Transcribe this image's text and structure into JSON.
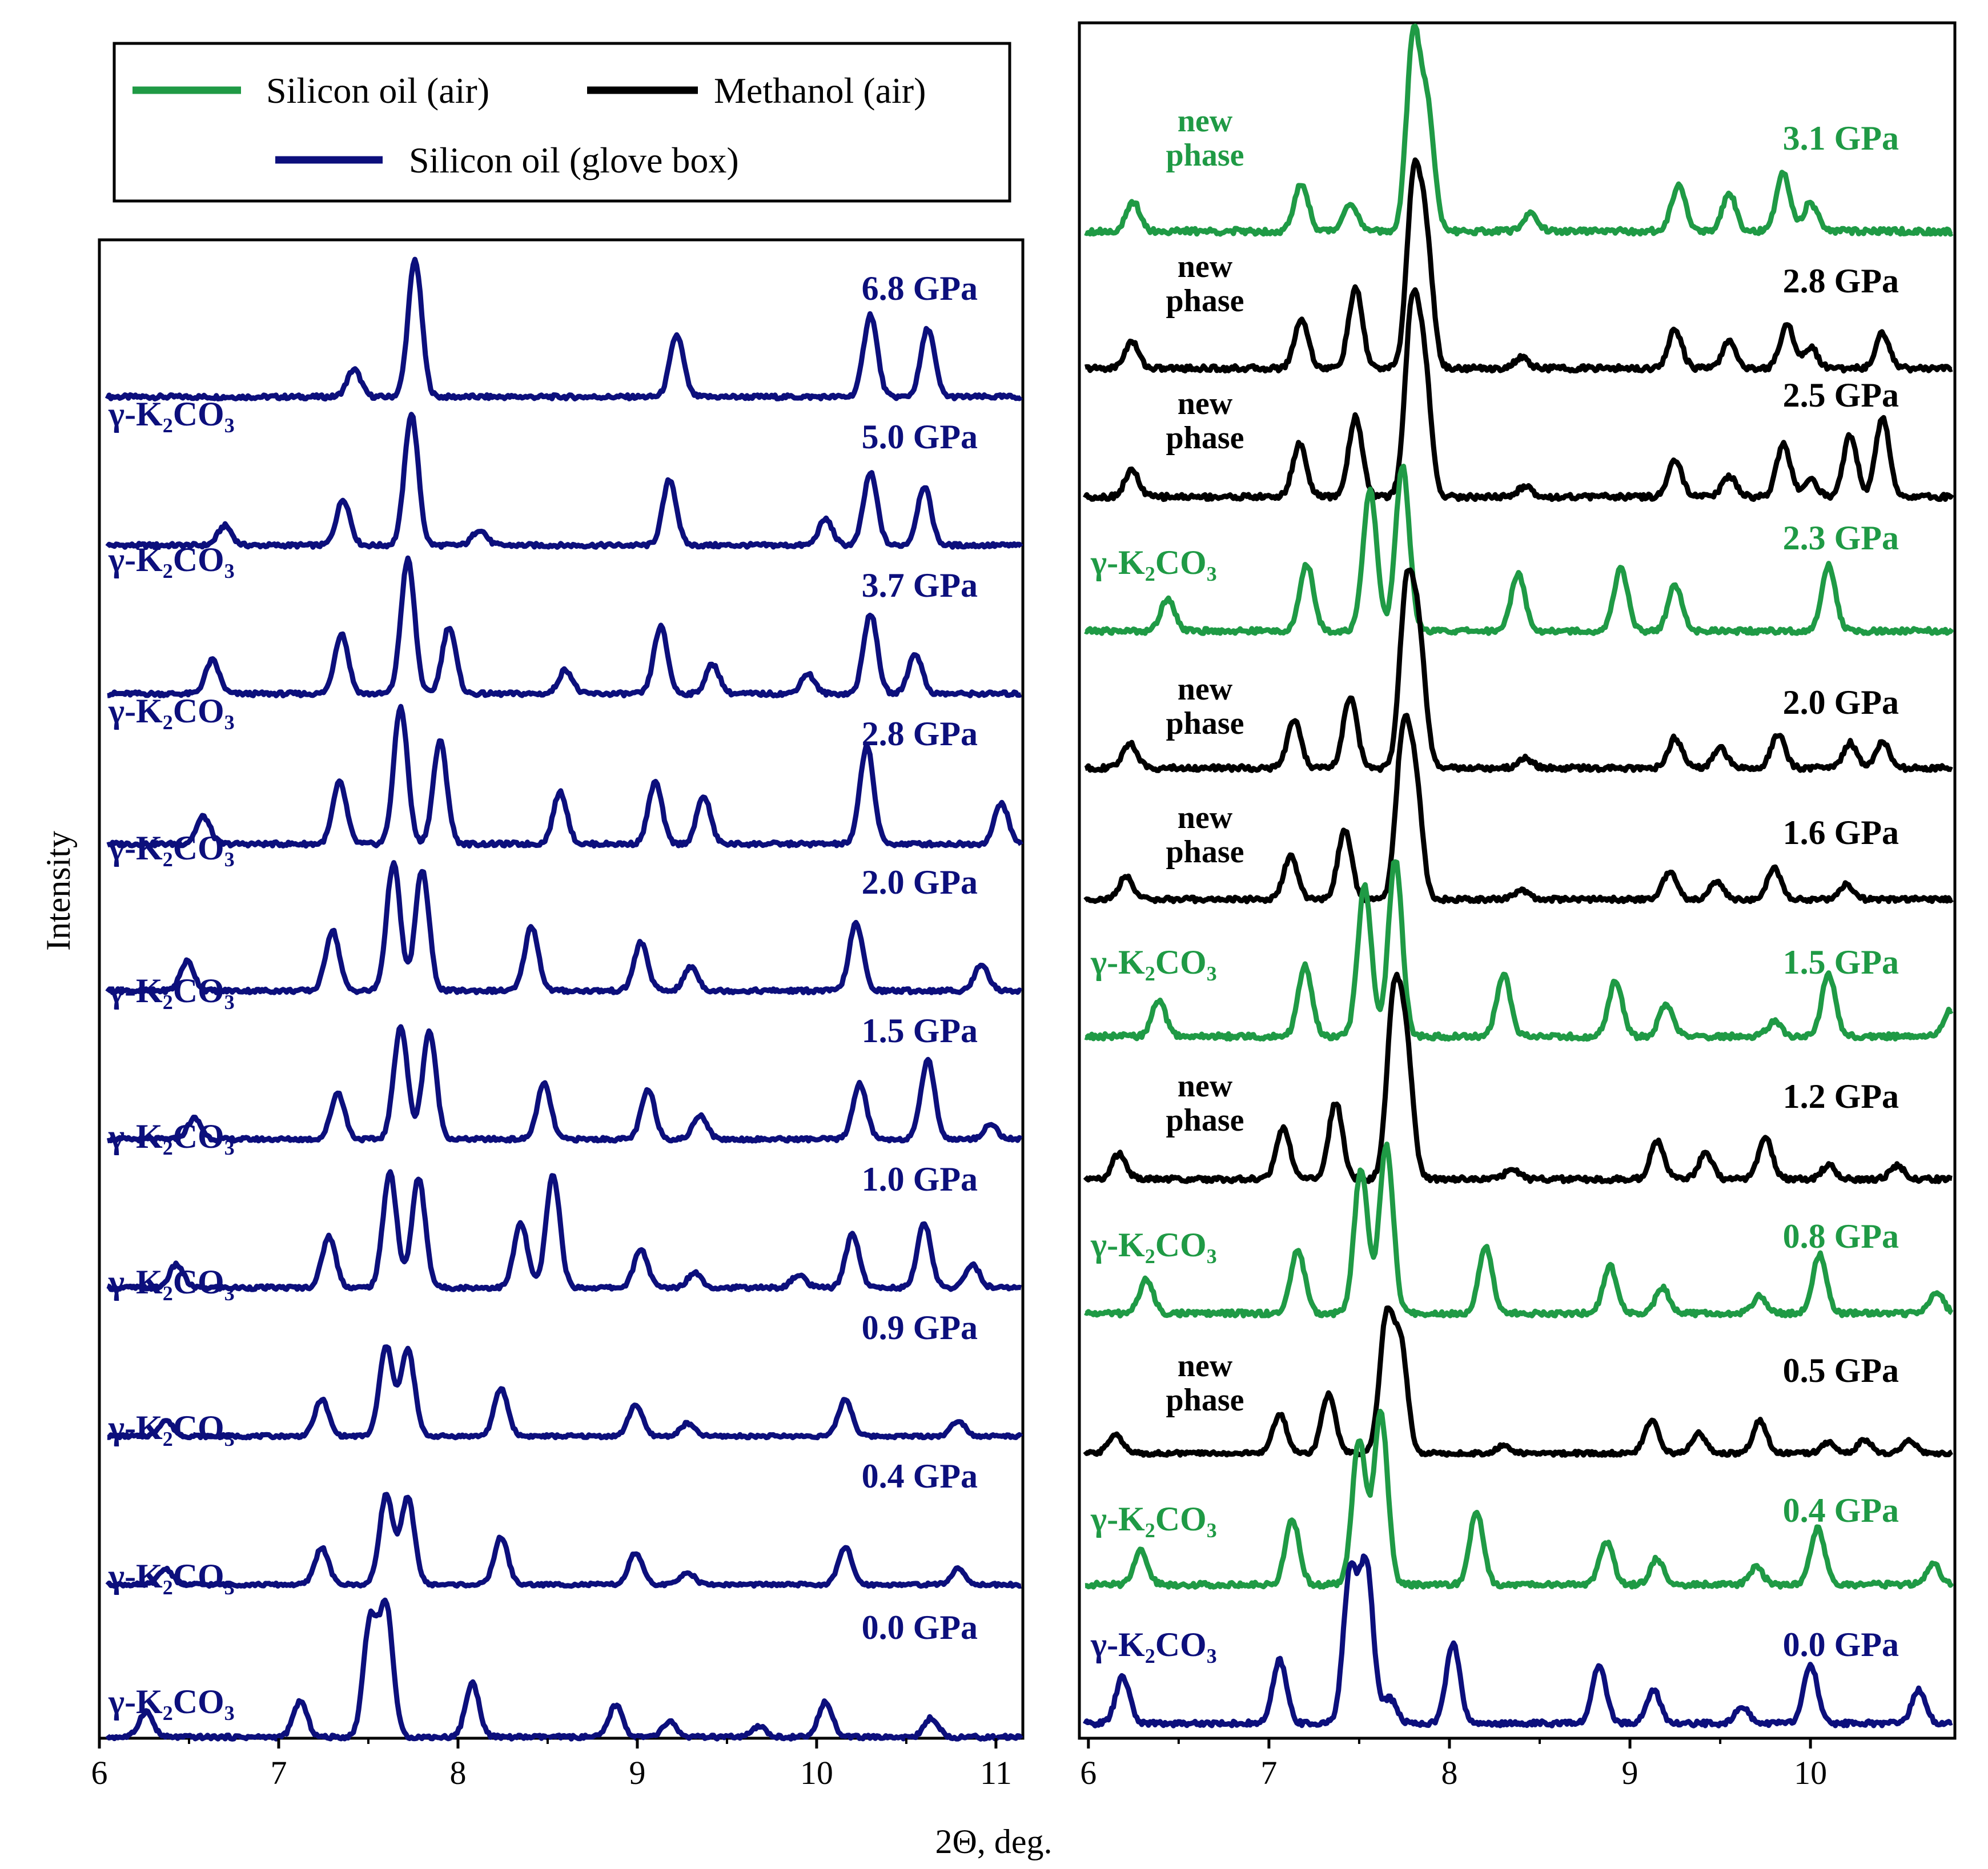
{
  "colors": {
    "green": "#1f9a45",
    "black": "#000000",
    "navy": "#0c0f7c"
  },
  "legend": {
    "items": [
      {
        "label": "Silicon oil (air)",
        "color": "#1f9a45"
      },
      {
        "label": "Methanol (air)",
        "color": "#000000"
      },
      {
        "label": "Silicon oil (glove box)",
        "color": "#0c0f7c"
      }
    ]
  },
  "axes": {
    "ylabel": "Intensity",
    "xlabel": "2Θ, deg."
  },
  "chart_data": [
    {
      "type": "line",
      "panel": "left",
      "xlabel": "2Θ, deg.",
      "ylabel": "Intensity",
      "xlim": [
        6,
        11.15
      ],
      "xticks": [
        6,
        7,
        8,
        9,
        10,
        11
      ],
      "grid": false,
      "series": [
        {
          "pressure": "6.8 GPa",
          "phase_label": "γ-K₂CO₃",
          "medium": "Silicon oil (glove box)",
          "peaks": [
            [
              7.42,
              0.2
            ],
            [
              7.76,
              1.0
            ],
            [
              9.22,
              0.45
            ],
            [
              10.3,
              0.6
            ],
            [
              10.62,
              0.5
            ]
          ]
        },
        {
          "pressure": "5.0 GPa",
          "phase_label": "γ-K₂CO₃",
          "medium": "Silicon oil (glove box)",
          "peaks": [
            [
              6.7,
              0.15
            ],
            [
              7.36,
              0.35
            ],
            [
              7.74,
              1.0
            ],
            [
              8.12,
              0.12
            ],
            [
              9.18,
              0.5
            ],
            [
              10.05,
              0.2
            ],
            [
              10.3,
              0.55
            ],
            [
              10.6,
              0.45
            ]
          ]
        },
        {
          "pressure": "3.7 GPa",
          "phase_label": "γ-K₂CO₃",
          "medium": "Silicon oil (glove box)",
          "peaks": [
            [
              6.63,
              0.25
            ],
            [
              7.35,
              0.45
            ],
            [
              7.72,
              1.0
            ],
            [
              7.95,
              0.5
            ],
            [
              8.6,
              0.18
            ],
            [
              9.13,
              0.5
            ],
            [
              9.42,
              0.22
            ],
            [
              9.95,
              0.15
            ],
            [
              10.3,
              0.6
            ],
            [
              10.55,
              0.3
            ]
          ]
        },
        {
          "pressure": "2.8 GPa",
          "phase_label": "γ-K₂CO₃",
          "medium": "Silicon oil (glove box)",
          "peaks": [
            [
              6.58,
              0.2
            ],
            [
              7.34,
              0.45
            ],
            [
              7.68,
              1.0
            ],
            [
              7.9,
              0.75
            ],
            [
              8.57,
              0.38
            ],
            [
              9.1,
              0.45
            ],
            [
              9.37,
              0.35
            ],
            [
              10.28,
              0.72
            ],
            [
              11.03,
              0.3
            ]
          ]
        },
        {
          "pressure": "2.0 GPa",
          "phase_label": "γ-K₂CO₃",
          "medium": "Silicon oil (glove box)",
          "peaks": [
            [
              6.49,
              0.22
            ],
            [
              7.3,
              0.45
            ],
            [
              7.64,
              0.95
            ],
            [
              7.8,
              0.9
            ],
            [
              8.41,
              0.48
            ],
            [
              9.02,
              0.36
            ],
            [
              9.3,
              0.18
            ],
            [
              10.22,
              0.5
            ],
            [
              10.92,
              0.2
            ]
          ]
        },
        {
          "pressure": "1.5 GPa",
          "phase_label": "γ-K₂CO₃",
          "medium": "Silicon oil (glove box)",
          "peaks": [
            [
              6.53,
              0.17
            ],
            [
              7.33,
              0.38
            ],
            [
              7.68,
              0.92
            ],
            [
              7.84,
              0.88
            ],
            [
              8.48,
              0.45
            ],
            [
              9.06,
              0.4
            ],
            [
              9.35,
              0.2
            ],
            [
              10.24,
              0.45
            ],
            [
              10.62,
              0.65
            ],
            [
              10.97,
              0.12
            ]
          ]
        },
        {
          "pressure": "1.0 GPa",
          "phase_label": "γ-K₂CO₃",
          "medium": "Silicon oil (glove box)",
          "peaks": [
            [
              6.43,
              0.18
            ],
            [
              7.28,
              0.4
            ],
            [
              7.62,
              0.9
            ],
            [
              7.78,
              0.85
            ],
            [
              8.35,
              0.5
            ],
            [
              8.53,
              0.88
            ],
            [
              9.02,
              0.3
            ],
            [
              9.32,
              0.12
            ],
            [
              9.9,
              0.1
            ],
            [
              10.2,
              0.42
            ],
            [
              10.6,
              0.5
            ],
            [
              10.87,
              0.18
            ]
          ]
        },
        {
          "pressure": "0.9 GPa",
          "phase_label": "γ-K₂CO₃",
          "medium": "Silicon oil (glove box)",
          "peaks": [
            [
              6.37,
              0.15
            ],
            [
              7.24,
              0.35
            ],
            [
              7.6,
              0.85
            ],
            [
              7.72,
              0.82
            ],
            [
              8.24,
              0.45
            ],
            [
              8.99,
              0.3
            ],
            [
              9.28,
              0.12
            ],
            [
              10.16,
              0.35
            ],
            [
              10.79,
              0.15
            ]
          ]
        },
        {
          "pressure": "0.4 GPa",
          "phase_label": "γ-K₂CO₃",
          "medium": "Silicon oil (glove box)",
          "peaks": [
            [
              6.37,
              0.15
            ],
            [
              7.24,
              0.35
            ],
            [
              7.6,
              0.85
            ],
            [
              7.72,
              0.82
            ],
            [
              8.24,
              0.45
            ],
            [
              8.99,
              0.3
            ],
            [
              9.28,
              0.12
            ],
            [
              10.16,
              0.35
            ],
            [
              10.79,
              0.15
            ]
          ]
        },
        {
          "pressure": "0.0 GPa",
          "phase_label": "γ-K₂CO₃",
          "medium": "Silicon oil (glove box)",
          "peaks": [
            [
              6.26,
              0.2
            ],
            [
              7.12,
              0.28
            ],
            [
              7.51,
              0.9
            ],
            [
              7.6,
              1.0
            ],
            [
              8.08,
              0.42
            ],
            [
              8.88,
              0.25
            ],
            [
              9.18,
              0.12
            ],
            [
              9.68,
              0.08
            ],
            [
              10.05,
              0.28
            ],
            [
              10.64,
              0.15
            ]
          ]
        }
      ]
    },
    {
      "type": "line",
      "panel": "right",
      "xlabel": "2Θ, deg.",
      "ylabel": "Intensity",
      "xlim": [
        5.95,
        10.8
      ],
      "xticks": [
        6,
        7,
        8,
        9,
        10
      ],
      "grid": false,
      "series": [
        {
          "pressure": "3.1 GPa",
          "phase_label": "new phase",
          "medium": "Silicon oil (air)",
          "peaks": [
            [
              6.25,
              0.15
            ],
            [
              7.18,
              0.25
            ],
            [
              7.45,
              0.15
            ],
            [
              7.8,
              1.0
            ],
            [
              7.88,
              0.6
            ],
            [
              8.45,
              0.1
            ],
            [
              9.27,
              0.25
            ],
            [
              9.55,
              0.2
            ],
            [
              9.85,
              0.3
            ],
            [
              10.0,
              0.15
            ]
          ]
        },
        {
          "pressure": "2.8 GPa",
          "phase_label": "new phase",
          "medium": "Methanol (air)",
          "peaks": [
            [
              6.24,
              0.15
            ],
            [
              7.18,
              0.28
            ],
            [
              7.48,
              0.45
            ],
            [
              7.8,
              1.0
            ],
            [
              7.87,
              0.7
            ],
            [
              8.4,
              0.06
            ],
            [
              9.25,
              0.22
            ],
            [
              9.55,
              0.15
            ],
            [
              9.87,
              0.25
            ],
            [
              10.0,
              0.12
            ],
            [
              10.4,
              0.2
            ]
          ]
        },
        {
          "pressure": "2.5 GPa",
          "phase_label": "new phase",
          "medium": "Methanol (air)",
          "peaks": [
            [
              6.24,
              0.15
            ],
            [
              7.17,
              0.3
            ],
            [
              7.48,
              0.45
            ],
            [
              7.79,
              1.0
            ],
            [
              7.86,
              0.7
            ],
            [
              8.42,
              0.06
            ],
            [
              9.25,
              0.2
            ],
            [
              9.55,
              0.12
            ],
            [
              9.85,
              0.3
            ],
            [
              10.0,
              0.1
            ],
            [
              10.22,
              0.35
            ],
            [
              10.4,
              0.45
            ]
          ]
        },
        {
          "pressure": "2.3 GPa",
          "phase_label": "γ-K₂CO₃",
          "medium": "Silicon oil (air)",
          "peaks": [
            [
              6.44,
              0.2
            ],
            [
              7.21,
              0.4
            ],
            [
              7.56,
              0.85
            ],
            [
              7.74,
              1.0
            ],
            [
              8.38,
              0.35
            ],
            [
              8.95,
              0.38
            ],
            [
              9.25,
              0.28
            ],
            [
              10.1,
              0.4
            ]
          ]
        },
        {
          "pressure": "2.0 GPa",
          "phase_label": "new phase",
          "medium": "Methanol (air)",
          "peaks": [
            [
              6.23,
              0.15
            ],
            [
              7.14,
              0.28
            ],
            [
              7.45,
              0.42
            ],
            [
              7.76,
              1.0
            ],
            [
              7.83,
              0.75
            ],
            [
              8.42,
              0.06
            ],
            [
              9.25,
              0.18
            ],
            [
              9.5,
              0.12
            ],
            [
              9.82,
              0.2
            ],
            [
              10.22,
              0.15
            ],
            [
              10.4,
              0.15
            ]
          ]
        },
        {
          "pressure": "1.6 GPa",
          "phase_label": "new phase",
          "medium": "Methanol (air)",
          "peaks": [
            [
              6.21,
              0.15
            ],
            [
              7.12,
              0.28
            ],
            [
              7.42,
              0.45
            ],
            [
              7.74,
              1.0
            ],
            [
              7.81,
              0.75
            ],
            [
              8.4,
              0.06
            ],
            [
              9.22,
              0.18
            ],
            [
              9.48,
              0.12
            ],
            [
              9.8,
              0.2
            ],
            [
              10.2,
              0.1
            ]
          ]
        },
        {
          "pressure": "1.5 GPa",
          "phase_label": "γ-K₂CO₃",
          "medium": "Silicon oil (air)",
          "peaks": [
            [
              6.39,
              0.2
            ],
            [
              7.2,
              0.4
            ],
            [
              7.53,
              0.85
            ],
            [
              7.7,
              1.0
            ],
            [
              8.3,
              0.35
            ],
            [
              8.92,
              0.32
            ],
            [
              9.2,
              0.18
            ],
            [
              9.8,
              0.08
            ],
            [
              10.1,
              0.35
            ],
            [
              10.78,
              0.15
            ]
          ]
        },
        {
          "pressure": "1.2 GPa",
          "phase_label": "new phase",
          "medium": "Methanol (air)",
          "peaks": [
            [
              6.17,
              0.15
            ],
            [
              7.08,
              0.3
            ],
            [
              7.37,
              0.45
            ],
            [
              7.69,
              1.0
            ],
            [
              7.76,
              0.75
            ],
            [
              8.35,
              0.06
            ],
            [
              9.15,
              0.22
            ],
            [
              9.42,
              0.15
            ],
            [
              9.75,
              0.25
            ],
            [
              10.1,
              0.08
            ],
            [
              10.48,
              0.08
            ]
          ]
        },
        {
          "pressure": "0.8 GPa",
          "phase_label": "γ-K₂CO₃",
          "medium": "Silicon oil (air)",
          "peaks": [
            [
              6.32,
              0.2
            ],
            [
              7.16,
              0.38
            ],
            [
              7.51,
              0.85
            ],
            [
              7.65,
              1.0
            ],
            [
              8.2,
              0.4
            ],
            [
              8.89,
              0.28
            ],
            [
              9.18,
              0.15
            ],
            [
              9.72,
              0.1
            ],
            [
              10.05,
              0.35
            ],
            [
              10.7,
              0.12
            ]
          ]
        },
        {
          "pressure": "0.5 GPa",
          "phase_label": "new phase",
          "medium": "Methanol (air)",
          "peaks": [
            [
              6.15,
              0.15
            ],
            [
              7.06,
              0.3
            ],
            [
              7.33,
              0.45
            ],
            [
              7.65,
              1.0
            ],
            [
              7.73,
              0.8
            ],
            [
              8.3,
              0.06
            ],
            [
              9.12,
              0.25
            ],
            [
              9.38,
              0.15
            ],
            [
              9.72,
              0.25
            ],
            [
              10.1,
              0.08
            ],
            [
              10.3,
              0.1
            ],
            [
              10.55,
              0.1
            ]
          ]
        },
        {
          "pressure": "0.4 GPa",
          "phase_label": "γ-K₂CO₃",
          "medium": "Silicon oil (air)",
          "peaks": [
            [
              6.29,
              0.2
            ],
            [
              7.13,
              0.38
            ],
            [
              7.5,
              0.85
            ],
            [
              7.62,
              1.0
            ],
            [
              8.15,
              0.42
            ],
            [
              8.87,
              0.25
            ],
            [
              9.15,
              0.15
            ],
            [
              9.7,
              0.1
            ],
            [
              10.04,
              0.33
            ],
            [
              10.68,
              0.12
            ]
          ]
        },
        {
          "pressure": "0.0 GPa",
          "phase_label": "γ-K₂CO₃",
          "medium": "Silicon oil (glove box)",
          "peaks": [
            [
              6.19,
              0.28
            ],
            [
              7.06,
              0.38
            ],
            [
              7.45,
              0.9
            ],
            [
              7.54,
              0.95
            ],
            [
              7.67,
              0.15
            ],
            [
              8.02,
              0.48
            ],
            [
              8.83,
              0.35
            ],
            [
              9.13,
              0.2
            ],
            [
              9.62,
              0.1
            ],
            [
              10.0,
              0.36
            ],
            [
              10.6,
              0.2
            ]
          ]
        }
      ]
    }
  ]
}
